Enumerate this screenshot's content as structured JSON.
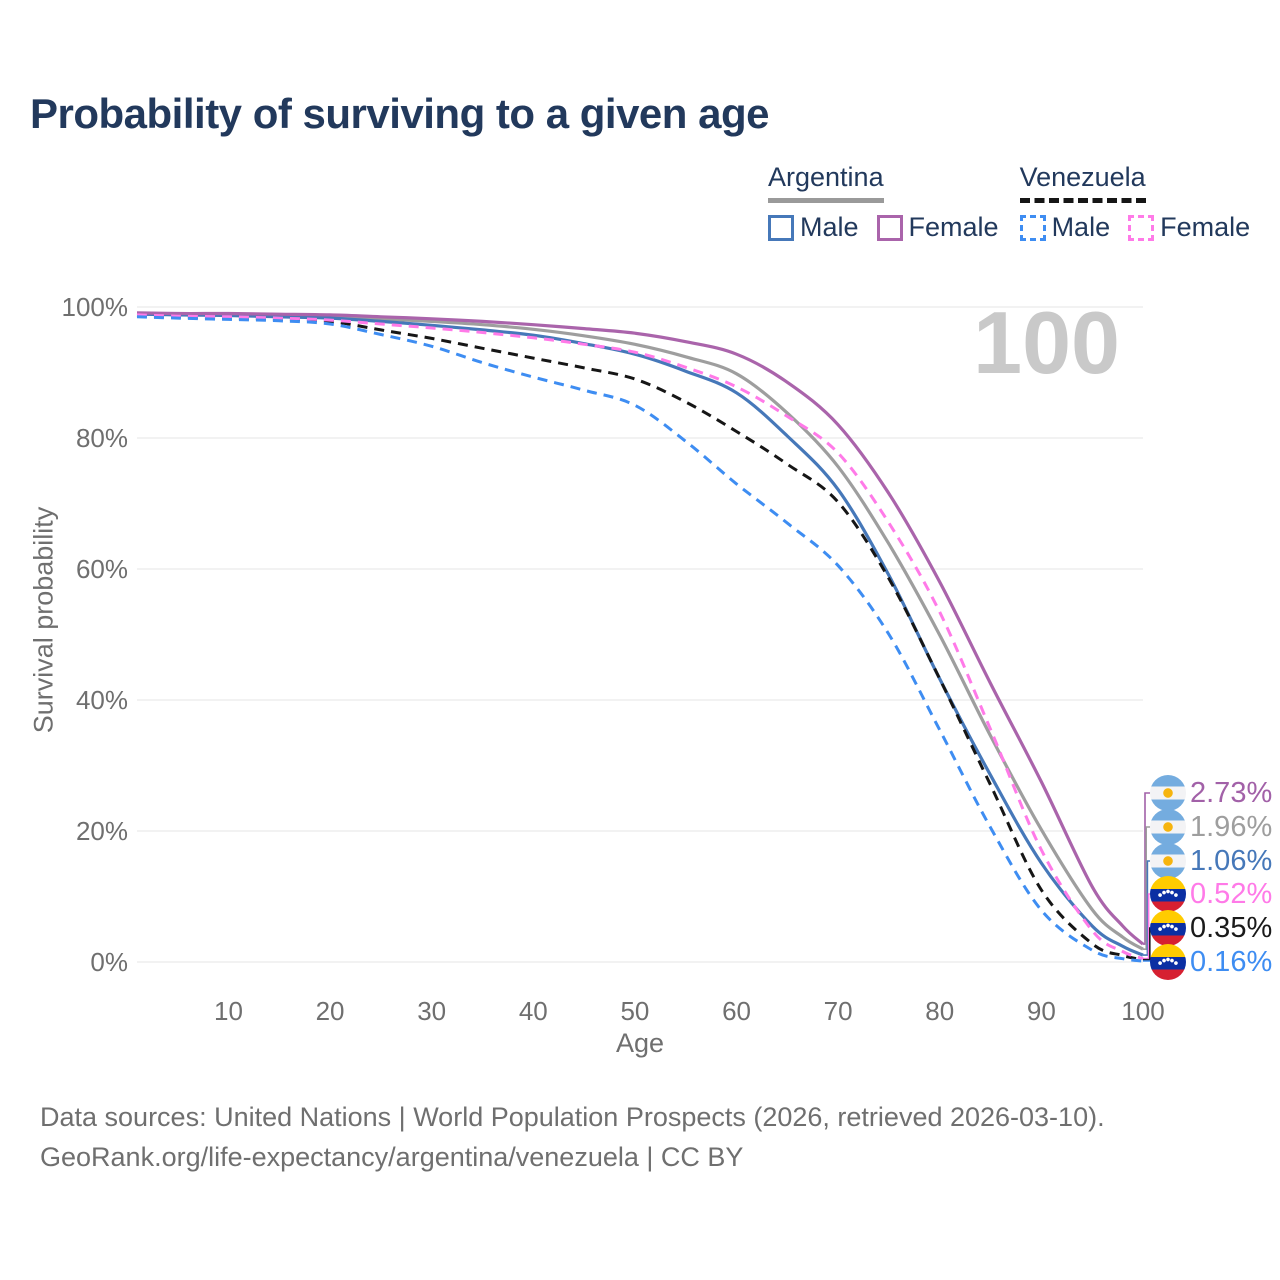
{
  "header": {
    "title": "Probability of surviving to a given age"
  },
  "watermark": "100",
  "legend": {
    "groups": [
      {
        "id": "argentina",
        "name": "Argentina",
        "underline_style": "solid",
        "underline_color": "#9a9a9a",
        "items": [
          {
            "id": "argentina-male",
            "label": "Male",
            "color": "#4678b9",
            "box_style": "solid"
          },
          {
            "id": "argentina-female",
            "label": "Female",
            "color": "#aa64ab",
            "box_style": "solid"
          }
        ]
      },
      {
        "id": "venezuela",
        "name": "Venezuela",
        "underline_style": "dashed",
        "underline_color": "#161616",
        "items": [
          {
            "id": "venezuela-male",
            "label": "Male",
            "color": "#3e8df2",
            "box_style": "dashed"
          },
          {
            "id": "venezuela-female",
            "label": "Female",
            "color": "#ff7ae8",
            "box_style": "dashed"
          }
        ]
      }
    ]
  },
  "chart_data": {
    "type": "line",
    "title": "Probability of surviving to a given age",
    "xlabel": "Age",
    "ylabel": "Survival probability",
    "xlim": [
      1,
      100
    ],
    "ylim": [
      0,
      100
    ],
    "xticks": [
      10,
      20,
      30,
      40,
      50,
      60,
      70,
      80,
      90,
      100
    ],
    "yticks": [
      0,
      20,
      40,
      60,
      80,
      100
    ],
    "ytick_suffix": "%",
    "grid": "horizontal",
    "legend_position": "top-right",
    "x": [
      1,
      5,
      10,
      15,
      20,
      25,
      30,
      35,
      40,
      45,
      50,
      55,
      60,
      65,
      70,
      75,
      80,
      85,
      90,
      95,
      98,
      100
    ],
    "series": [
      {
        "id": "argentina-both",
        "name": "Argentina (both sexes)",
        "country": "Argentina",
        "sex": "both",
        "color": "#9e9e9e",
        "dash": "solid",
        "width": 3.2,
        "values": [
          99.0,
          98.9,
          98.8,
          98.7,
          98.5,
          98.2,
          97.8,
          97.3,
          96.6,
          95.6,
          94.3,
          92.4,
          89.8,
          83.8,
          75.6,
          63.8,
          49.9,
          34.5,
          20.2,
          8.0,
          3.8,
          1.96
        ]
      },
      {
        "id": "argentina-male",
        "name": "Argentina Male",
        "country": "Argentina",
        "sex": "male",
        "color": "#4678b9",
        "dash": "solid",
        "width": 3.2,
        "values": [
          98.9,
          98.8,
          98.7,
          98.5,
          98.3,
          97.8,
          97.2,
          96.5,
          95.7,
          94.4,
          92.8,
          90.2,
          86.9,
          80.3,
          72.1,
          59.0,
          43.2,
          28.5,
          15.1,
          5.5,
          2.4,
          1.06
        ]
      },
      {
        "id": "argentina-female",
        "name": "Argentina Female",
        "country": "Argentina",
        "sex": "female",
        "color": "#aa64ab",
        "dash": "solid",
        "width": 3.2,
        "values": [
          99.1,
          99.0,
          99.0,
          98.9,
          98.8,
          98.5,
          98.2,
          97.8,
          97.3,
          96.7,
          96.0,
          94.7,
          92.8,
          88.5,
          82.0,
          71.5,
          58.0,
          42.5,
          27.5,
          11.5,
          5.5,
          2.73
        ]
      },
      {
        "id": "venezuela-both",
        "name": "Venezuela (both sexes)",
        "country": "Venezuela",
        "sex": "both",
        "color": "#161616",
        "dash": "dashed",
        "width": 3,
        "values": [
          98.7,
          98.5,
          98.3,
          98.1,
          97.8,
          96.5,
          95.2,
          93.7,
          92.2,
          90.7,
          89.0,
          85.5,
          81.0,
          76.0,
          70.2,
          58.5,
          43.2,
          27.0,
          11.0,
          2.8,
          1.0,
          0.35
        ]
      },
      {
        "id": "venezuela-female",
        "name": "Venezuela Female",
        "country": "Venezuela",
        "sex": "female",
        "color": "#ff7ae8",
        "dash": "dashed",
        "width": 3,
        "values": [
          98.8,
          98.6,
          98.5,
          98.3,
          98.0,
          97.4,
          96.8,
          96.1,
          95.3,
          94.3,
          93.1,
          90.8,
          87.8,
          83.3,
          77.7,
          67.0,
          53.4,
          35.5,
          17.1,
          4.8,
          1.6,
          0.52
        ]
      },
      {
        "id": "venezuela-male",
        "name": "Venezuela Male",
        "country": "Venezuela",
        "sex": "male",
        "color": "#3e8df2",
        "dash": "dashed",
        "width": 3,
        "values": [
          98.5,
          98.3,
          98.1,
          97.9,
          97.4,
          95.8,
          94.0,
          91.5,
          89.3,
          87.3,
          85.0,
          79.5,
          73.0,
          67.0,
          60.5,
          50.0,
          35.4,
          20.5,
          7.9,
          1.8,
          0.5,
          0.16
        ]
      }
    ]
  },
  "end_labels": [
    {
      "series": "argentina-female",
      "flag": "argentina",
      "label": "2.73%",
      "color": "#a261a8"
    },
    {
      "series": "argentina-both",
      "flag": "argentina",
      "label": "1.96%",
      "color": "#9e9e9e"
    },
    {
      "series": "argentina-male",
      "flag": "argentina",
      "label": "1.06%",
      "color": "#4678b9"
    },
    {
      "series": "venezuela-female",
      "flag": "venezuela",
      "label": "0.52%",
      "color": "#ff7ae8"
    },
    {
      "series": "venezuela-both",
      "flag": "venezuela",
      "label": "0.35%",
      "color": "#1a1a1a"
    },
    {
      "series": "venezuela-male",
      "flag": "venezuela",
      "label": "0.16%",
      "color": "#3e8df2"
    }
  ],
  "icons": {
    "argentina-flag-icon": {
      "band": "#74ACDF",
      "middle": "#f3f3f5",
      "sun": "#F6B40E"
    },
    "venezuela-flag-icon": {
      "top": "#FFCC00",
      "middle": "#0b2fa3",
      "bottom": "#d62031",
      "stars": "#ffffff"
    }
  },
  "colors": {
    "title": "#22395c",
    "axis_text": "#6f6f6f",
    "gridline": "#e9e9e9",
    "watermark": "#c9c9c9"
  },
  "footer": {
    "line1": "Data sources: United Nations | World Population Prospects (2026, retrieved 2026-03-10).",
    "line2": "GeoRank.org/life-expectancy/argentina/venezuela | CC BY"
  }
}
